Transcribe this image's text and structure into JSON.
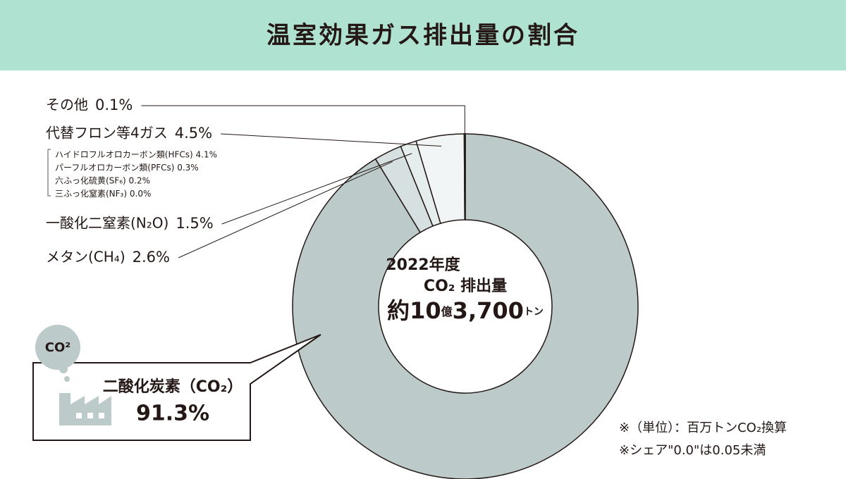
{
  "chart_data": {
    "type": "donut",
    "title": "温室効果ガス排出量の割合",
    "categories": [
      "二酸化炭素（CO₂）",
      "メタン(CH₄)",
      "一酸化二窒素(N₂O)",
      "代替フロン等4ガス",
      "その他"
    ],
    "values": [
      91.3,
      2.6,
      1.5,
      4.5,
      0.1
    ],
    "value_labels": [
      "91.3%",
      "2.6%",
      "1.5%",
      "4.5%",
      "0.1%"
    ],
    "colors": [
      "#bccbca",
      "#d6e0e0",
      "#e6eded",
      "#f1f5f5",
      "#ffffff"
    ],
    "breakdown": [
      "ハイドロフルオロカーボン類(HFCs) 4.1%",
      "パーフルオロカーボン類(PFCs) 0.3%",
      "六ふっ化硫黄(SF₆) 0.2%",
      "三ふっ化窒素(NF₃) 0.0%"
    ],
    "center": {
      "year": "2022年度",
      "label": "CO₂ 排出量",
      "total": [
        "約10",
        "億",
        "3,700",
        "トン"
      ]
    },
    "callout_icon_label": "CO²",
    "notes": [
      "※（単位）：百万トンCO₂換算",
      "※シェア\"0.0\"は0.05未満"
    ]
  }
}
